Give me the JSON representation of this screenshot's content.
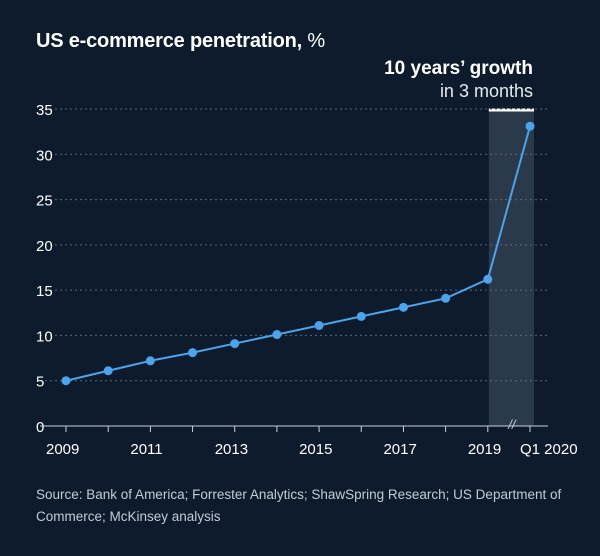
{
  "title": "US e-commerce penetration,",
  "title_unit": "%",
  "annotation": {
    "headline": "10 years’ growth",
    "subtext": "in 3 months"
  },
  "source": "Source: Bank of America; Forrester Analytics; ShawSpring Research; US Department of Commerce; McKinsey analysis",
  "colors": {
    "background": "#0d1b2c",
    "line": "#4da3ec",
    "highlight_band": "#2b3a4b",
    "gridline": "#5b6878",
    "highlight_marker": "#ffffff"
  },
  "chart_data": {
    "type": "line",
    "title": "US e-commerce penetration, %",
    "xlabel": "",
    "ylabel": "%",
    "ylim": [
      0,
      35
    ],
    "yticks": [
      0,
      5,
      10,
      15,
      20,
      25,
      30,
      35
    ],
    "grid": true,
    "x": [
      "2009",
      "2010",
      "2011",
      "2012",
      "2013",
      "2014",
      "2015",
      "2016",
      "2017",
      "2018",
      "2019",
      "Q1 2020"
    ],
    "x_tick_labels": [
      "2009",
      "2011",
      "2013",
      "2015",
      "2017",
      "2019",
      "Q1 2020"
    ],
    "axis_break": "//",
    "series": [
      {
        "name": "US e-commerce penetration",
        "values": [
          5.0,
          6.1,
          7.2,
          8.1,
          9.1,
          10.1,
          11.1,
          12.1,
          13.1,
          14.1,
          16.2,
          33.1
        ]
      }
    ],
    "highlight": {
      "from": "2019",
      "to": "Q1 2020",
      "label": "10 years’ growth in 3 months"
    }
  }
}
